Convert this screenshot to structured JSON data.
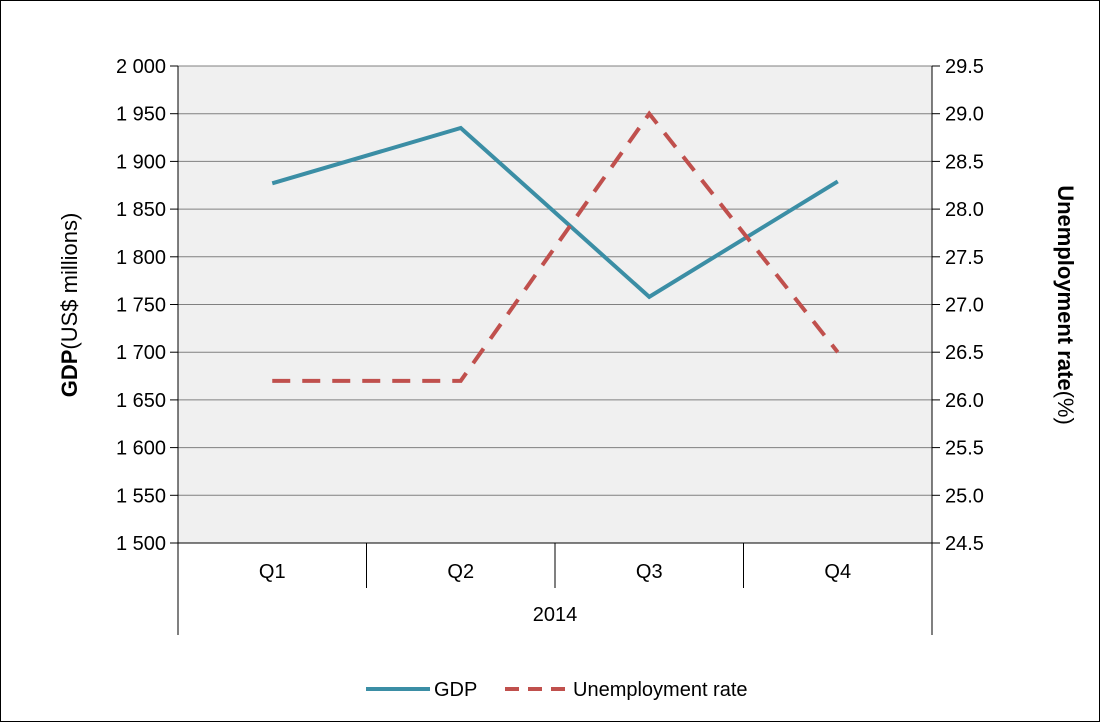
{
  "chart_data": {
    "type": "line",
    "categories": [
      "Q1",
      "Q2",
      "Q3",
      "Q4"
    ],
    "group_label": "2014",
    "y_left": {
      "label_bold": "GDP",
      "label_rest": "(US$ millions)",
      "lim": [
        1500,
        2000
      ],
      "ticks": [
        "1 500",
        "1 550",
        "1 600",
        "1 650",
        "1 700",
        "1 750",
        "1 800",
        "1 850",
        "1 900",
        "1 950",
        "2 000"
      ]
    },
    "y_right": {
      "label_bold": "Unemployment rate",
      "label_rest": "(%)",
      "lim": [
        24.5,
        29.5
      ],
      "ticks": [
        "24.5",
        "25.0",
        "25.5",
        "26.0",
        "26.5",
        "27.0",
        "27.5",
        "28.0",
        "28.5",
        "29.0",
        "29.5"
      ]
    },
    "series": [
      {
        "name": "GDP",
        "axis": "left",
        "values": [
          1877,
          1935,
          1758,
          1879
        ],
        "color": "#3b8ea5",
        "style": "solid"
      },
      {
        "name": "Unemployment rate",
        "axis": "right",
        "values": [
          26.2,
          26.2,
          29.0,
          26.5
        ],
        "color": "#c0504d",
        "style": "dashed"
      }
    ],
    "grid": true,
    "plot_background": "#f0f0f0",
    "legend_position": "bottom"
  }
}
